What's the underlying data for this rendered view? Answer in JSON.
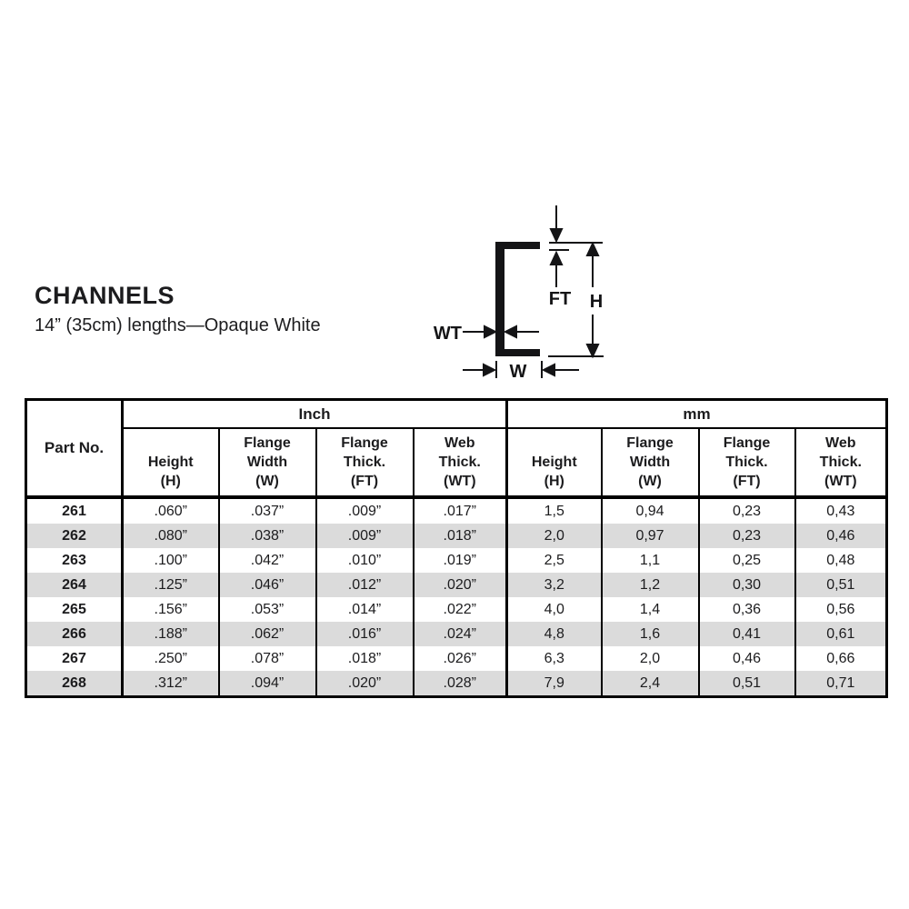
{
  "page": {
    "title": "CHANNELS",
    "subtitle": "14” (35cm) lengths—Opaque White"
  },
  "colors": {
    "ink": "#1c1c1e",
    "row_stripe": "#dbdbdb",
    "background": "#ffffff"
  },
  "diagram": {
    "description": "channel-cross-section",
    "labels": {
      "ft": "FT",
      "h": "H",
      "wt": "WT",
      "w": "W"
    }
  },
  "table": {
    "corner_header": "Part No.",
    "unit_groups": [
      {
        "label": "Inch"
      },
      {
        "label": "mm"
      }
    ],
    "sub_headers": [
      "Height\n(H)",
      "Flange\nWidth\n(W)",
      "Flange\nThick.\n(FT)",
      "Web\nThick.\n(WT)"
    ],
    "rows": [
      {
        "part": "261",
        "inch": [
          ".060”",
          ".037”",
          ".009”",
          ".017”"
        ],
        "mm": [
          "1,5",
          "0,94",
          "0,23",
          "0,43"
        ]
      },
      {
        "part": "262",
        "inch": [
          ".080”",
          ".038”",
          ".009”",
          ".018”"
        ],
        "mm": [
          "2,0",
          "0,97",
          "0,23",
          "0,46"
        ]
      },
      {
        "part": "263",
        "inch": [
          ".100”",
          ".042”",
          ".010”",
          ".019”"
        ],
        "mm": [
          "2,5",
          "1,1",
          "0,25",
          "0,48"
        ]
      },
      {
        "part": "264",
        "inch": [
          ".125”",
          ".046”",
          ".012”",
          ".020”"
        ],
        "mm": [
          "3,2",
          "1,2",
          "0,30",
          "0,51"
        ]
      },
      {
        "part": "265",
        "inch": [
          ".156”",
          ".053”",
          ".014”",
          ".022”"
        ],
        "mm": [
          "4,0",
          "1,4",
          "0,36",
          "0,56"
        ]
      },
      {
        "part": "266",
        "inch": [
          ".188”",
          ".062”",
          ".016”",
          ".024”"
        ],
        "mm": [
          "4,8",
          "1,6",
          "0,41",
          "0,61"
        ]
      },
      {
        "part": "267",
        "inch": [
          ".250”",
          ".078”",
          ".018”",
          ".026”"
        ],
        "mm": [
          "6,3",
          "2,0",
          "0,46",
          "0,66"
        ]
      },
      {
        "part": "268",
        "inch": [
          ".312”",
          ".094”",
          ".020”",
          ".028”"
        ],
        "mm": [
          "7,9",
          "2,4",
          "0,51",
          "0,71"
        ]
      }
    ]
  }
}
